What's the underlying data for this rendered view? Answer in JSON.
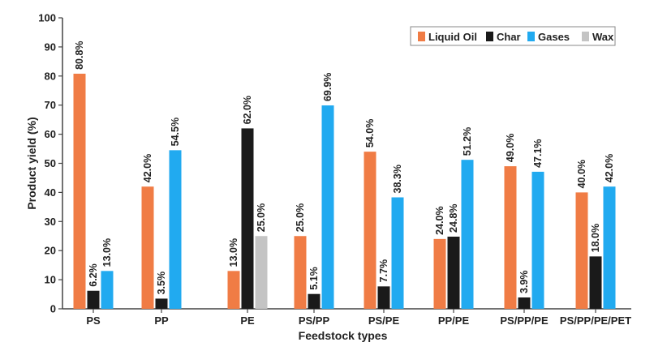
{
  "chart_data": {
    "type": "bar",
    "title": "",
    "xlabel": "Feedstock types",
    "ylabel": "Product yield (%)",
    "ylim": [
      0,
      100
    ],
    "yticks": [
      0,
      10,
      20,
      30,
      40,
      50,
      60,
      70,
      80,
      90,
      100
    ],
    "grid": false,
    "legend_position": "top-right",
    "categories": [
      "PS",
      "PP",
      "PE",
      "PS/PP",
      "PS/PE",
      "PP/PE",
      "PS/PP/PE",
      "PS/PP/PE/PET"
    ],
    "series": [
      {
        "name": "Liquid Oil",
        "color": "#f07c45",
        "values": [
          80.8,
          42.0,
          13.0,
          25.0,
          54.0,
          24.0,
          49.0,
          40.0
        ],
        "labels": [
          "80.8%",
          "42.0%",
          "13.0%",
          "25.0%",
          "54.0%",
          "24.0%",
          "49.0%",
          "40.0%"
        ]
      },
      {
        "name": "Char",
        "color": "#1a1a1a",
        "values": [
          6.2,
          3.5,
          62.0,
          5.1,
          7.7,
          24.8,
          3.9,
          18.0
        ],
        "labels": [
          "6.2%",
          "3.5%",
          "62.0%",
          "5.1%",
          "7.7%",
          "24.8%",
          "3.9%",
          "18.0%"
        ]
      },
      {
        "name": "Gases",
        "color": "#21aaf0",
        "values": [
          13.0,
          54.5,
          null,
          69.9,
          38.3,
          51.2,
          47.1,
          42.0
        ],
        "labels": [
          "13.0%",
          "54.5%",
          null,
          "69.9%",
          "38.3%",
          "51.2%",
          "47.1%",
          "42.0%"
        ]
      },
      {
        "name": "Wax",
        "color": "#c4c4c4",
        "values": [
          null,
          null,
          25.0,
          null,
          null,
          null,
          null,
          null
        ],
        "labels": [
          null,
          null,
          "25.0%",
          null,
          null,
          null,
          null,
          null
        ]
      }
    ]
  }
}
